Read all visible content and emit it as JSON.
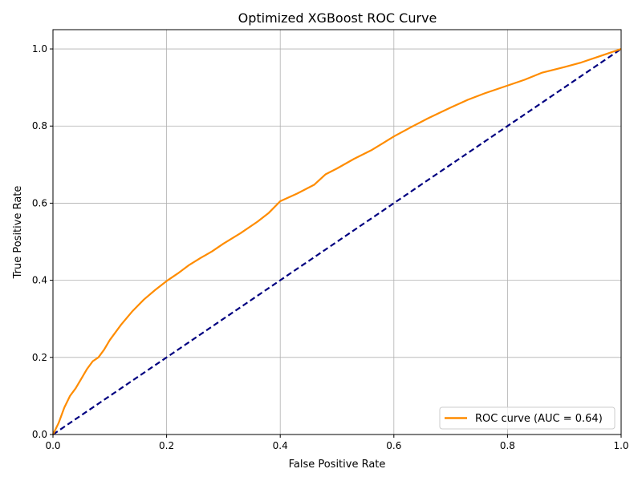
{
  "chart_data": {
    "type": "line",
    "title": "Optimized XGBoost ROC Curve",
    "xlabel": "False Positive Rate",
    "ylabel": "True Positive Rate",
    "xlim": [
      0.0,
      1.0
    ],
    "ylim": [
      0.0,
      1.05
    ],
    "xticks": [
      "0.0",
      "0.2",
      "0.4",
      "0.6",
      "0.8",
      "1.0"
    ],
    "yticks": [
      "0.0",
      "0.2",
      "0.4",
      "0.6",
      "0.8",
      "1.0"
    ],
    "grid": true,
    "legend_position": "lower-right",
    "series": [
      {
        "name": "ROC curve (AUC = 0.64)",
        "color": "#ff8c00",
        "style": "solid",
        "x": [
          0.0,
          0.01,
          0.02,
          0.03,
          0.04,
          0.05,
          0.06,
          0.07,
          0.08,
          0.09,
          0.1,
          0.12,
          0.14,
          0.16,
          0.18,
          0.2,
          0.22,
          0.24,
          0.26,
          0.28,
          0.3,
          0.33,
          0.36,
          0.38,
          0.4,
          0.43,
          0.46,
          0.48,
          0.5,
          0.53,
          0.56,
          0.58,
          0.6,
          0.63,
          0.66,
          0.7,
          0.73,
          0.76,
          0.8,
          0.83,
          0.86,
          0.9,
          0.93,
          0.96,
          1.0
        ],
        "y": [
          0.0,
          0.03,
          0.07,
          0.1,
          0.12,
          0.145,
          0.17,
          0.19,
          0.2,
          0.22,
          0.245,
          0.285,
          0.32,
          0.35,
          0.375,
          0.398,
          0.418,
          0.44,
          0.458,
          0.475,
          0.495,
          0.522,
          0.552,
          0.575,
          0.605,
          0.625,
          0.648,
          0.675,
          0.69,
          0.715,
          0.737,
          0.755,
          0.773,
          0.797,
          0.82,
          0.848,
          0.868,
          0.885,
          0.905,
          0.92,
          0.938,
          0.953,
          0.965,
          0.98,
          1.0
        ]
      },
      {
        "name": "",
        "color": "#000080",
        "style": "dashed",
        "x": [
          0.0,
          1.0
        ],
        "y": [
          0.0,
          1.0
        ]
      }
    ]
  }
}
